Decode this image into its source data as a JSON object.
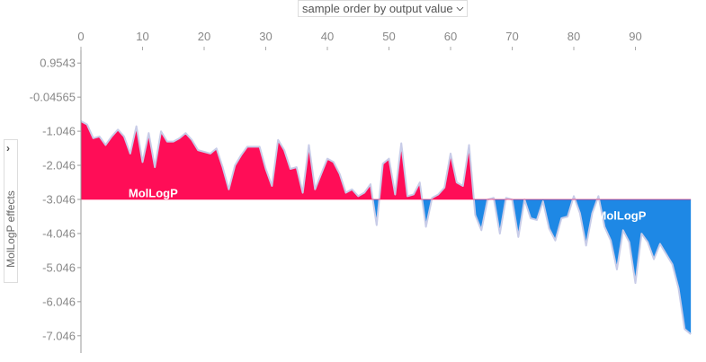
{
  "controls": {
    "ordering_select": {
      "selected": "sample order by output value",
      "icon": "chevron-down-icon"
    },
    "side_tab": {
      "label": "MolLogP effects",
      "icon": "chevron-right-icon"
    }
  },
  "colors": {
    "positive": "#ff0d57",
    "negative": "#1e88e5",
    "outline": "#c8cce8",
    "axis": "#999999",
    "tick_text": "#888888"
  },
  "labels": {
    "positive_feature": "MolLogP",
    "negative_feature": "MolLogP"
  },
  "chart_data": {
    "type": "area",
    "title": "",
    "xlabel": "",
    "ylabel": "MolLogP effects",
    "x_ticks": [
      "0",
      "10",
      "20",
      "30",
      "40",
      "50",
      "60",
      "70",
      "80",
      "90"
    ],
    "y_ticks": [
      "0.9543",
      "-0.04565",
      "-1.046",
      "-2.046",
      "-3.046",
      "-4.046",
      "-5.046",
      "-6.046",
      "-7.046"
    ],
    "xlim": [
      0,
      99
    ],
    "ylim": [
      -7.1,
      1.5
    ],
    "baseline": -3.046,
    "grid": false,
    "legend": null,
    "series": [
      {
        "name": "MolLogP",
        "x": [
          0,
          1,
          2,
          3,
          4,
          5,
          6,
          7,
          8,
          9,
          10,
          11,
          12,
          13,
          14,
          15,
          16,
          17,
          18,
          19,
          20,
          21,
          22,
          23,
          24,
          25,
          26,
          27,
          28,
          29,
          30,
          31,
          32,
          33,
          34,
          35,
          36,
          37,
          38,
          39,
          40,
          41,
          42,
          43,
          44,
          45,
          46,
          47,
          48,
          49,
          50,
          51,
          52,
          53,
          54,
          55,
          56,
          57,
          58,
          59,
          60,
          61,
          62,
          63,
          64,
          65,
          66,
          67,
          68,
          69,
          70,
          71,
          72,
          73,
          74,
          75,
          76,
          77,
          78,
          79,
          80,
          81,
          82,
          83,
          84,
          85,
          86,
          87,
          88,
          89,
          90,
          91,
          92,
          93,
          94,
          95,
          96,
          97,
          98,
          99
        ],
        "values": [
          -0.75,
          -0.85,
          -1.25,
          -1.2,
          -1.45,
          -1.2,
          -1.0,
          -1.2,
          -1.7,
          -0.9,
          -1.95,
          -1.1,
          -2.1,
          -1.05,
          -1.35,
          -1.35,
          -1.25,
          -1.1,
          -1.3,
          -1.6,
          -1.65,
          -1.7,
          -1.55,
          -2.1,
          -2.75,
          -2.05,
          -1.75,
          -1.5,
          -1.5,
          -1.5,
          -2.15,
          -2.65,
          -1.3,
          -1.6,
          -2.15,
          -2.1,
          -2.85,
          -1.45,
          -2.75,
          -2.3,
          -1.85,
          -1.95,
          -2.3,
          -2.85,
          -2.75,
          -2.95,
          -2.85,
          -2.6,
          -3.8,
          -2.0,
          -1.85,
          -2.9,
          -1.4,
          -2.95,
          -2.9,
          -2.55,
          -3.85,
          -3.0,
          -2.9,
          -2.7,
          -1.7,
          -2.55,
          -2.65,
          -1.45,
          -3.5,
          -3.95,
          -3.05,
          -3.0,
          -4.05,
          -3.0,
          -3.05,
          -4.15,
          -3.05,
          -3.6,
          -3.65,
          -3.1,
          -3.9,
          -4.25,
          -3.6,
          -3.55,
          -2.95,
          -3.45,
          -4.4,
          -3.45,
          -2.95,
          -3.85,
          -4.25,
          -5.1,
          -3.95,
          -4.3,
          -5.5,
          -4.05,
          -4.3,
          -4.8,
          -4.35,
          -4.65,
          -4.95,
          -5.65,
          -6.85,
          -7.0
        ],
        "positive_color": "#ff0d57",
        "negative_color": "#1e88e5"
      }
    ],
    "annotations": [
      {
        "text": "MolLogP",
        "x": 11,
        "y": -2.8,
        "region": "positive"
      },
      {
        "text": "MolLogP",
        "x": 87,
        "y": -3.45,
        "region": "negative"
      }
    ]
  }
}
